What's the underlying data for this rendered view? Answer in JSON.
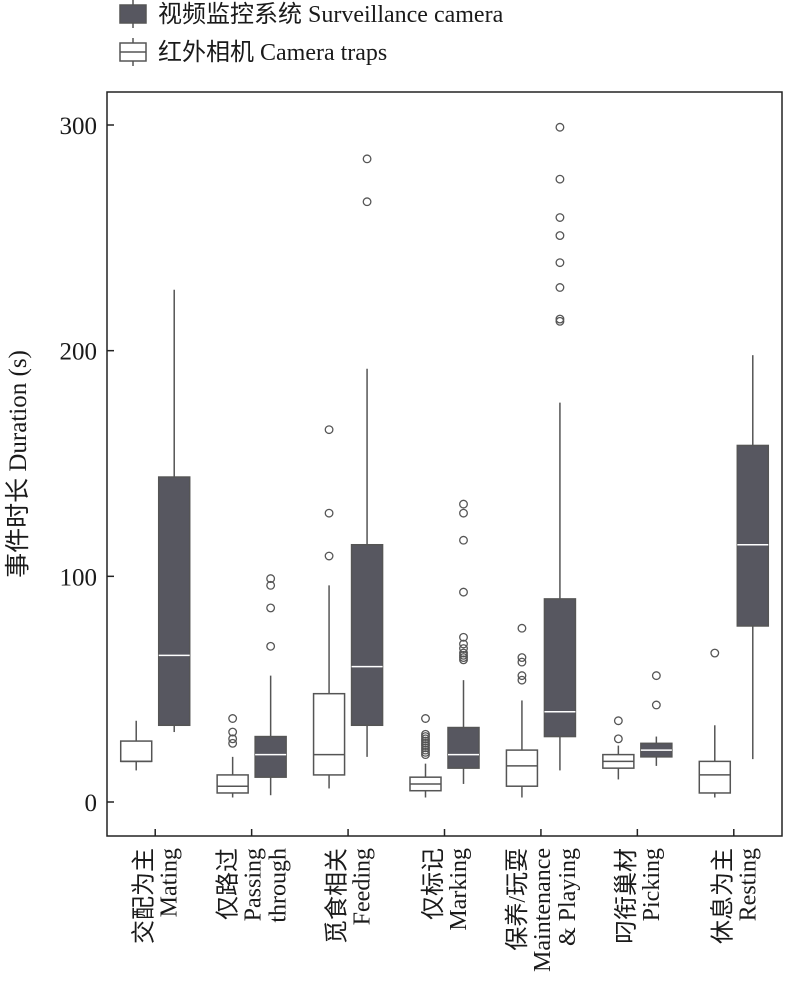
{
  "chart_data": {
    "type": "box",
    "title": "",
    "xlabel": "",
    "ylabel": "事件时长 Duration (s)",
    "ylim": [
      -15,
      315
    ],
    "yticks": [
      0,
      100,
      200,
      300
    ],
    "grid": false,
    "legend_placement": "top-left, above plot",
    "categories": [
      {
        "zh": "交配为主",
        "en": [
          "Mating"
        ]
      },
      {
        "zh": "仅路过",
        "en": [
          "Passing",
          "through"
        ]
      },
      {
        "zh": "觅食相关",
        "en": [
          "Feeding"
        ]
      },
      {
        "zh": "仅标记",
        "en": [
          "Marking"
        ]
      },
      {
        "zh": "保养/玩耍",
        "en": [
          "Maintenance",
          "& Playing"
        ]
      },
      {
        "zh": "叼衔巢材",
        "en": [
          "Picking"
        ]
      },
      {
        "zh": "休息为主",
        "en": [
          "Resting"
        ]
      }
    ],
    "series": [
      {
        "name": "红外相机  Camera traps",
        "fill": "#ffffff",
        "stroke": "#555555",
        "median_color": "#555555",
        "boxes": [
          {
            "whisker_low": 14,
            "q1": 18,
            "median": 18,
            "q3": 27,
            "whisker_high": 36,
            "outliers": []
          },
          {
            "whisker_low": 2,
            "q1": 4,
            "median": 7,
            "q3": 12,
            "whisker_high": 20,
            "outliers": [
              26,
              28,
              31,
              37
            ]
          },
          {
            "whisker_low": 6,
            "q1": 12,
            "median": 21,
            "q3": 48,
            "whisker_high": 96,
            "outliers": [
              109,
              128,
              165
            ]
          },
          {
            "whisker_low": 2,
            "q1": 5,
            "median": 8,
            "q3": 11,
            "whisker_high": 17,
            "outliers": [
              21,
              22,
              23,
              24,
              25,
              26,
              27,
              28,
              29,
              30,
              37
            ]
          },
          {
            "whisker_low": 2,
            "q1": 7,
            "median": 16,
            "q3": 23,
            "whisker_high": 45,
            "outliers": [
              54,
              56,
              62,
              64,
              77
            ]
          },
          {
            "whisker_low": 10,
            "q1": 15,
            "median": 18,
            "q3": 21,
            "whisker_high": 25,
            "outliers": [
              28,
              36
            ]
          },
          {
            "whisker_low": 2,
            "q1": 4,
            "median": 12,
            "q3": 18,
            "whisker_high": 34,
            "outliers": [
              66
            ]
          }
        ]
      },
      {
        "name": "视频监控系统 Surveillance camera",
        "fill": "#575760",
        "stroke": "#555555",
        "median_color": "#ffffff",
        "boxes": [
          {
            "whisker_low": 31,
            "q1": 34,
            "median": 65,
            "q3": 144,
            "whisker_high": 227,
            "outliers": []
          },
          {
            "whisker_low": 3,
            "q1": 11,
            "median": 21,
            "q3": 29,
            "whisker_high": 56,
            "outliers": [
              69,
              86,
              96,
              99
            ]
          },
          {
            "whisker_low": 20,
            "q1": 34,
            "median": 60,
            "q3": 114,
            "whisker_high": 192,
            "outliers": [
              266,
              285
            ]
          },
          {
            "whisker_low": 8,
            "q1": 15,
            "median": 21,
            "q3": 33,
            "whisker_high": 54,
            "outliers": [
              63,
              64,
              65,
              66,
              68,
              70,
              73,
              93,
              116,
              128,
              132
            ]
          },
          {
            "whisker_low": 14,
            "q1": 29,
            "median": 40,
            "q3": 90,
            "whisker_high": 177,
            "outliers": [
              213,
              214,
              228,
              239,
              251,
              259,
              276,
              299
            ]
          },
          {
            "whisker_low": 16,
            "q1": 20,
            "median": 23,
            "q3": 26,
            "whisker_high": 29,
            "outliers": [
              43,
              56
            ]
          },
          {
            "whisker_low": 19,
            "q1": 78,
            "median": 114,
            "q3": 158,
            "whisker_high": 198,
            "outliers": []
          }
        ]
      }
    ]
  }
}
